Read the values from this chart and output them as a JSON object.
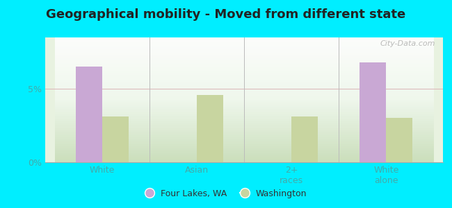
{
  "title": "Geographical mobility - Moved from different state",
  "categories": [
    "White",
    "Asian",
    "2+\nraces",
    "White\nalone"
  ],
  "four_lakes_values": [
    6.5,
    0,
    0,
    6.8
  ],
  "washington_values": [
    3.1,
    4.6,
    3.1,
    3.0
  ],
  "four_lakes_color": "#c9a8d4",
  "washington_color": "#c8d5a0",
  "ylim": [
    0,
    8.5
  ],
  "yticks": [
    0,
    5
  ],
  "ytick_labels": [
    "0%",
    "5%"
  ],
  "plot_bg_color": "#deecd8",
  "outer_background": "#00eeff",
  "bar_width": 0.28,
  "legend_fl": "Four Lakes, WA",
  "legend_wa": "Washington",
  "watermark": "City-Data.com",
  "title_color": "#222222",
  "tick_color": "#44aaaa",
  "title_fontsize": 13
}
